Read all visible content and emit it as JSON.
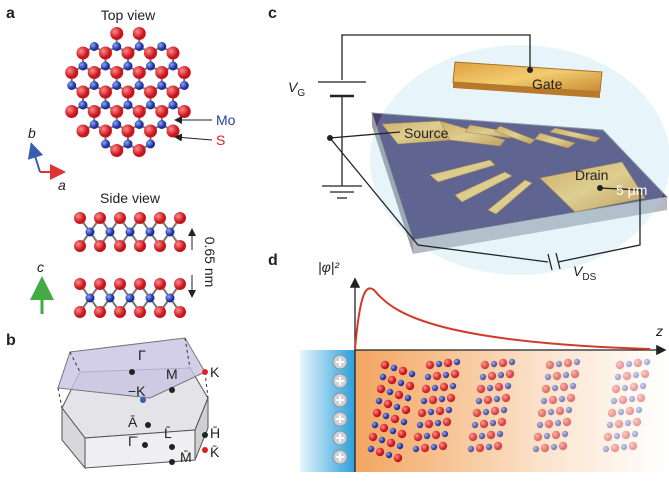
{
  "panels": {
    "a": {
      "label": "a",
      "top_view": "Top view",
      "side_view": "Side view",
      "mo": "Mo",
      "s": "S",
      "axis_b": "b",
      "axis_a": "a",
      "axis_c": "c",
      "thickness": "0.65 nm"
    },
    "b": {
      "label": "b",
      "points": [
        "Γ",
        "M",
        "K",
        "−K",
        "Ā",
        "Γ̄",
        "L̄",
        "H̄",
        "K̄",
        "M̄"
      ]
    },
    "c": {
      "label": "c",
      "vg": {
        "symbol": "V",
        "subscript": "G"
      },
      "gate": "Gate",
      "source": "Source",
      "drain": "Drain",
      "scale": "5 μm",
      "vds": {
        "symbol": "V",
        "subscript": "DS"
      }
    },
    "d": {
      "label": "d",
      "y_axis": "|φ|²",
      "x_axis": "z"
    }
  }
}
